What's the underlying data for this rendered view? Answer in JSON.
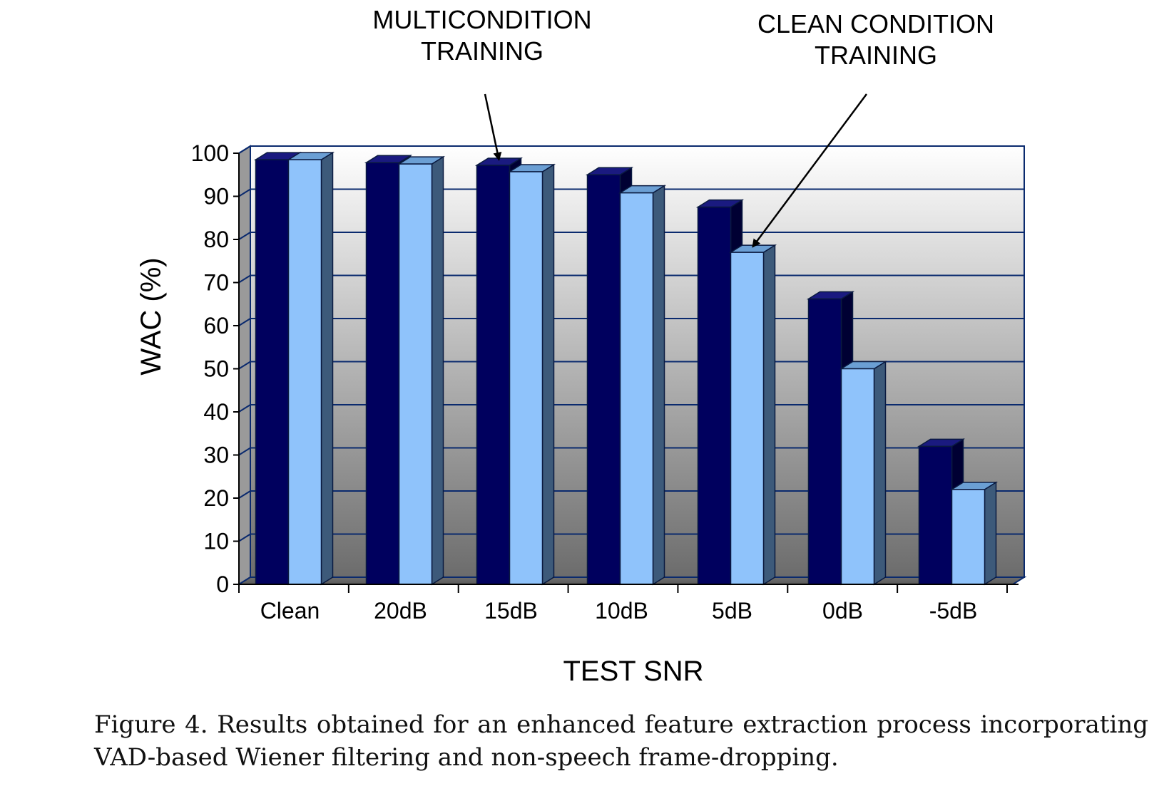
{
  "chart_data": {
    "type": "bar",
    "categories": [
      "Clean",
      "20dB",
      "15dB",
      "10dB",
      "5dB",
      "0dB",
      "-5dB"
    ],
    "series": [
      {
        "values": [
          98.5,
          97.8,
          97.2,
          95.0,
          87.5,
          66.2,
          32.0
        ]
      },
      {
        "values": [
          98.5,
          97.5,
          95.7,
          90.8,
          77.0,
          50.0,
          22.0
        ]
      }
    ],
    "series_colors": [
      "#00005e",
      "#8fc3fb"
    ],
    "xlabel": "TEST SNR",
    "ylabel": "WAC (%)",
    "ylim": [
      0,
      100
    ],
    "yticks": [
      0,
      10,
      20,
      30,
      40,
      50,
      60,
      70,
      80,
      90,
      100
    ],
    "grid": true,
    "annotations": [
      {
        "lines": [
          "MULTICONDITION",
          "TRAINING"
        ],
        "points_to": {
          "series": 0,
          "category": "15dB"
        }
      },
      {
        "lines": [
          "CLEAN CONDITION",
          "TRAINING"
        ],
        "points_to": {
          "series": 1,
          "category": "5dB"
        }
      }
    ]
  },
  "caption": "Figure 4. Results obtained for an enhanced feature extraction process incorporating VAD-based Wiener filtering and non-speech frame-dropping."
}
